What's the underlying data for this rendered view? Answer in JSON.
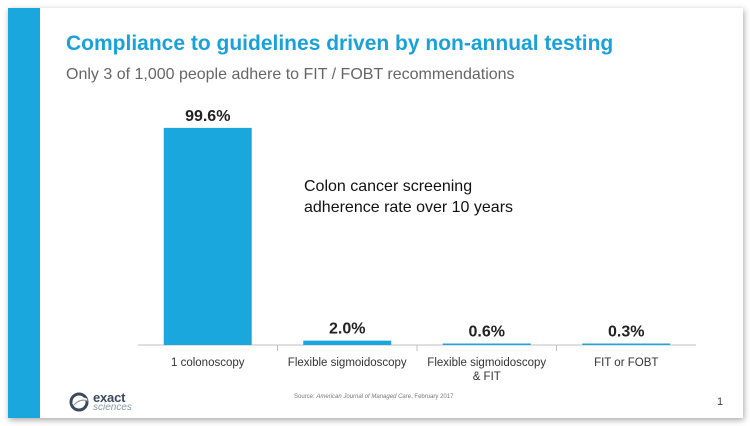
{
  "colors": {
    "accent": "#1aa7dd",
    "title": "#1ba0d8",
    "baseline": "#bfbfbf"
  },
  "title": "Compliance to guidelines driven by non-annual testing",
  "subtitle": "Only 3 of 1,000 people adhere to FIT / FOBT recommendations",
  "annotation": {
    "line1": "Colon cancer screening",
    "line2": "adherence rate over 10 years"
  },
  "chart_data": {
    "type": "bar",
    "categories": [
      [
        "1  colonoscopy"
      ],
      [
        "Flexible sigmoidoscopy"
      ],
      [
        "Flexible sigmoidoscopy",
        "& FIT"
      ],
      [
        "FIT or FOBT"
      ]
    ],
    "values": [
      99.6,
      2.0,
      0.6,
      0.3
    ],
    "data_labels": [
      "99.6%",
      "2.0%",
      "0.6%",
      "0.3%"
    ],
    "ylim": [
      0,
      100
    ],
    "grid": false,
    "legend": "none"
  },
  "logo": {
    "word1": "exact",
    "word2": "sciences",
    "icon": "exact-sciences-swirl-icon"
  },
  "source": {
    "prefix": "Source: ",
    "publication": "American Journal of Managed Care",
    "suffix": ", February 2017"
  },
  "page_number": "1"
}
